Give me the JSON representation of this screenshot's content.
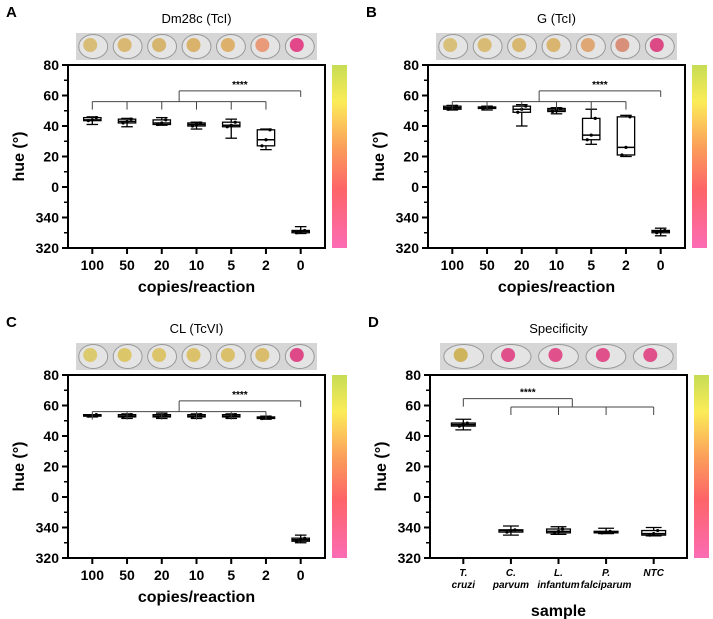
{
  "chart_data": [
    {
      "type": "box",
      "panel_label": "A",
      "title": "Dm28c (TcI)",
      "xlabel": "copies/reaction",
      "ylabel": "hue (°)",
      "yticks": [
        "80",
        "60",
        "40",
        "20",
        "0",
        "340",
        "320"
      ],
      "ylim_hue_wrapped": [
        320,
        80
      ],
      "categories": [
        "100",
        "50",
        "20",
        "10",
        "5",
        "2",
        "0"
      ],
      "boxes": [
        [
          41,
          43.5,
          44,
          45.5,
          46
        ],
        [
          39.5,
          42,
          43,
          44.5,
          45
        ],
        [
          40.5,
          41,
          42,
          44,
          45.5
        ],
        [
          38,
          40,
          41,
          42,
          42.5
        ],
        [
          32,
          39.5,
          40.5,
          42.5,
          44.5
        ],
        [
          24.5,
          27,
          31,
          37.5,
          38
        ],
        [
          329.5,
          330,
          331,
          331.5,
          334
        ]
      ],
      "significance": "****",
      "well_colors": [
        "#d8bd78",
        "#d8b872",
        "#d6b56e",
        "#d9b26c",
        "#ddb06c",
        "#e99a78",
        "#e2478a"
      ]
    },
    {
      "type": "box",
      "panel_label": "B",
      "title": "G (TcI)",
      "xlabel": "copies/reaction",
      "ylabel": "hue (°)",
      "yticks": [
        "80",
        "60",
        "40",
        "20",
        "0",
        "340",
        "320"
      ],
      "ylim_hue_wrapped": [
        320,
        80
      ],
      "categories": [
        "100",
        "50",
        "20",
        "10",
        "5",
        "2",
        "0"
      ],
      "boxes": [
        [
          50.5,
          51,
          52,
          53,
          53.5
        ],
        [
          50.5,
          51.5,
          52,
          52.5,
          53
        ],
        [
          40,
          49,
          51,
          53,
          54
        ],
        [
          48,
          49.5,
          50.5,
          51.5,
          52
        ],
        [
          28,
          31,
          34,
          45,
          51
        ],
        [
          20,
          21,
          26,
          46,
          47
        ],
        [
          328,
          330,
          331,
          331.5,
          333
        ]
      ],
      "significance": "****",
      "well_colors": [
        "#d9c07a",
        "#d8bb74",
        "#d8b770",
        "#d9b570",
        "#dfa774",
        "#d8907a",
        "#dc4a86"
      ]
    },
    {
      "type": "box",
      "panel_label": "C",
      "title": "CL (TcVI)",
      "xlabel": "copies/reaction",
      "ylabel": "hue (°)",
      "yticks": [
        "80",
        "60",
        "40",
        "20",
        "0",
        "340",
        "320"
      ],
      "ylim_hue_wrapped": [
        320,
        80
      ],
      "categories": [
        "100",
        "50",
        "20",
        "10",
        "5",
        "2",
        "0"
      ],
      "boxes": [
        [
          52.5,
          53,
          53.5,
          54,
          54
        ],
        [
          51.5,
          52.5,
          53,
          54,
          54.5
        ],
        [
          51.5,
          52.5,
          53,
          54,
          55
        ],
        [
          51.5,
          52.5,
          53,
          54,
          54.5
        ],
        [
          51.5,
          52.5,
          53,
          54,
          54.5
        ],
        [
          51,
          51.5,
          52,
          52.5,
          53
        ],
        [
          330,
          331,
          332,
          333,
          335
        ]
      ],
      "significance": "****",
      "well_colors": [
        "#dccb6e",
        "#dcc66a",
        "#dcc46a",
        "#dbc26a",
        "#dbc06c",
        "#d9bc6c",
        "#de4a88"
      ]
    },
    {
      "type": "box",
      "panel_label": "D",
      "title": "Specificity",
      "xlabel": "sample",
      "ylabel": "hue (°)",
      "yticks": [
        "80",
        "60",
        "40",
        "20",
        "0",
        "340",
        "320"
      ],
      "ylim_hue_wrapped": [
        320,
        80
      ],
      "categories": [
        [
          "T.",
          "cruzi"
        ],
        [
          "C.",
          "parvum"
        ],
        [
          "L.",
          "infantum"
        ],
        [
          "P.",
          "falciparum"
        ],
        [
          "NTC",
          ""
        ]
      ],
      "boxes": [
        [
          44,
          46.5,
          47.5,
          48.5,
          51
        ],
        [
          335,
          337,
          338,
          338.5,
          341
        ],
        [
          335.5,
          336.5,
          337.5,
          339,
          340.5
        ],
        [
          336,
          336.5,
          337,
          337.5,
          339.5
        ],
        [
          334.5,
          335,
          336,
          338,
          340
        ]
      ],
      "significance": "****",
      "well_colors": [
        "#cfb45e",
        "#e0508a",
        "#e0508a",
        "#e0508a",
        "#e0508a"
      ]
    }
  ]
}
